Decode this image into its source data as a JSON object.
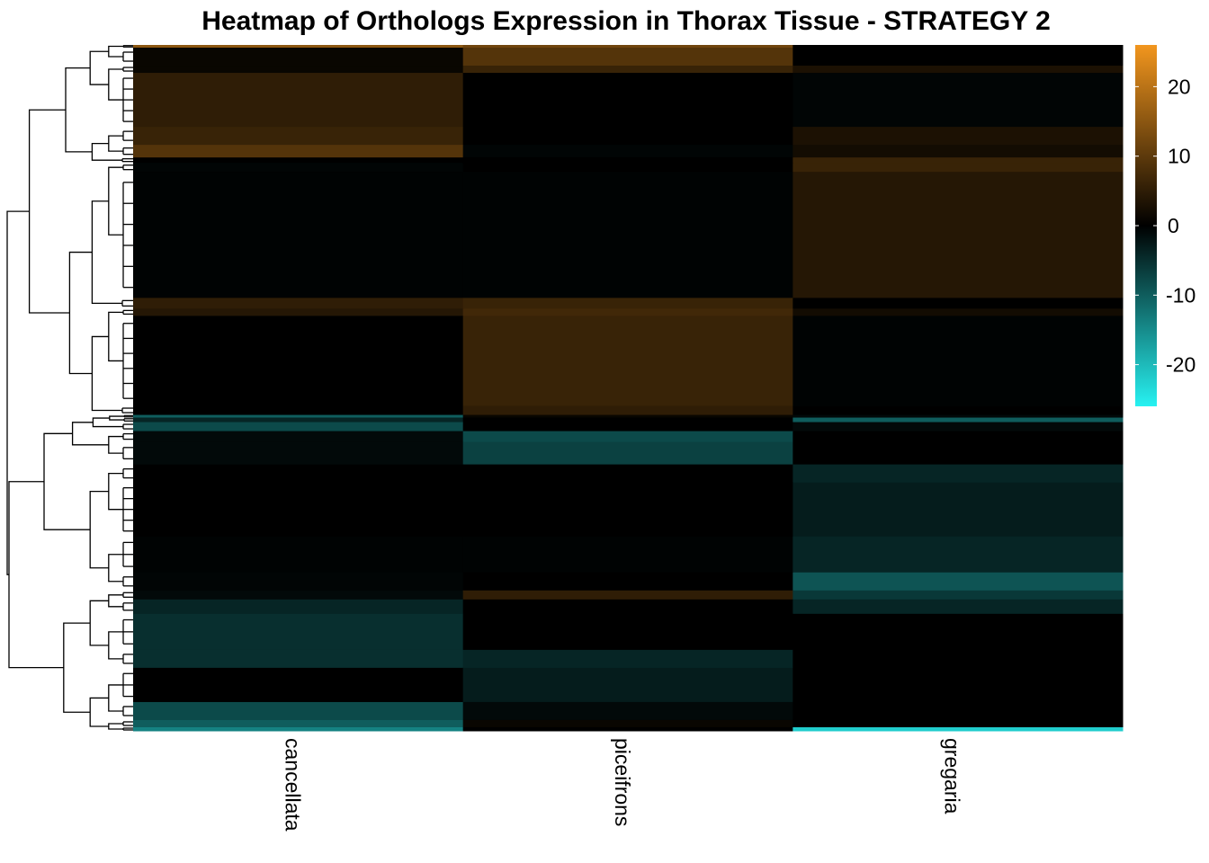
{
  "chart_data": {
    "type": "heatmap",
    "title": "Heatmap of Orthologs Expression in Thorax Tissue - STRATEGY 2",
    "columns": [
      "cancellata",
      "piceifrons",
      "gregaria"
    ],
    "color_scale": {
      "min": -26,
      "max": 26,
      "ticks": [
        20,
        10,
        0,
        -10,
        -20
      ],
      "low_color": "#27f2f2",
      "mid_color": "#000000",
      "high_color": "#f2961e"
    },
    "row_clusters": [
      {
        "rows": 3,
        "values": [
          15,
          12,
          0
        ]
      },
      {
        "rows": 20,
        "values": [
          1,
          9,
          0
        ]
      },
      {
        "rows": 8,
        "values": [
          1,
          6,
          3
        ]
      },
      {
        "rows": 60,
        "values": [
          5,
          0,
          -0.5
        ]
      },
      {
        "rows": 20,
        "values": [
          6,
          0,
          3
        ]
      },
      {
        "rows": 14,
        "values": [
          9,
          -0.5,
          2
        ]
      },
      {
        "rows": 6,
        "values": [
          0,
          0,
          6
        ]
      },
      {
        "rows": 10,
        "values": [
          -0.5,
          0,
          6
        ]
      },
      {
        "rows": 140,
        "values": [
          -0.3,
          -0.3,
          4
        ]
      },
      {
        "rows": 12,
        "values": [
          5,
          6,
          0
        ]
      },
      {
        "rows": 8,
        "values": [
          4,
          7,
          2
        ]
      },
      {
        "rows": 100,
        "values": [
          0,
          6,
          -0.3
        ]
      },
      {
        "rows": 10,
        "values": [
          0,
          5,
          0
        ]
      },
      {
        "rows": 3,
        "values": [
          -10,
          1,
          -1
        ]
      },
      {
        "rows": 5,
        "values": [
          -4,
          0,
          -10
        ]
      },
      {
        "rows": 10,
        "values": [
          -8,
          0,
          -1
        ]
      },
      {
        "rows": 12,
        "values": [
          -1,
          -8,
          0
        ]
      },
      {
        "rows": 25,
        "values": [
          -1,
          -7,
          0
        ]
      },
      {
        "rows": 20,
        "values": [
          0,
          0,
          -4
        ]
      },
      {
        "rows": 60,
        "values": [
          0,
          0,
          -3
        ]
      },
      {
        "rows": 40,
        "values": [
          -0.3,
          -0.3,
          -4
        ]
      },
      {
        "rows": 20,
        "values": [
          -0.5,
          0,
          -9
        ]
      },
      {
        "rows": 10,
        "values": [
          -1,
          5,
          -6
        ]
      },
      {
        "rows": 16,
        "values": [
          -4,
          0,
          -4
        ]
      },
      {
        "rows": 40,
        "values": [
          -5,
          0,
          0
        ]
      },
      {
        "rows": 20,
        "values": [
          -5,
          -4,
          0
        ]
      },
      {
        "rows": 38,
        "values": [
          0,
          -3,
          0
        ]
      },
      {
        "rows": 20,
        "values": [
          -8,
          -1,
          0
        ]
      },
      {
        "rows": 8,
        "values": [
          -10,
          1,
          0
        ]
      },
      {
        "rows": 4,
        "values": [
          -14,
          0,
          -22
        ]
      }
    ],
    "row_dendrogram": true,
    "column_dendrogram": false
  }
}
